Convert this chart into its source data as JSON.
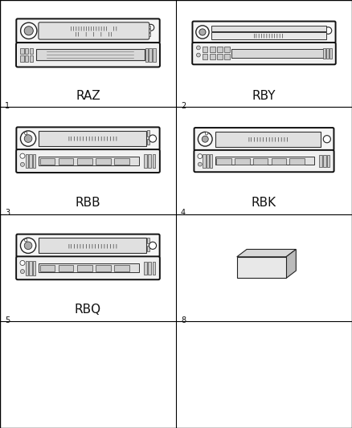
{
  "background_color": "#ffffff",
  "cells": [
    {
      "row": 0,
      "col": 0,
      "number": "1",
      "label": "RAZ",
      "type": "radio_RAZ"
    },
    {
      "row": 0,
      "col": 1,
      "number": "2",
      "label": "RBY",
      "type": "radio_RBY"
    },
    {
      "row": 1,
      "col": 0,
      "number": "3",
      "label": "RBB",
      "type": "radio_RBB"
    },
    {
      "row": 1,
      "col": 1,
      "number": "4",
      "label": "RBK",
      "type": "radio_RBK"
    },
    {
      "row": 2,
      "col": 0,
      "number": "5",
      "label": "RBQ",
      "type": "radio_RBQ"
    },
    {
      "row": 2,
      "col": 1,
      "number": "8",
      "label": "",
      "type": "box"
    },
    {
      "row": 3,
      "col": 0,
      "number": "",
      "label": "",
      "type": "empty"
    },
    {
      "row": 3,
      "col": 1,
      "number": "",
      "label": "",
      "type": "empty"
    }
  ],
  "num_rows": 4,
  "num_cols": 2,
  "label_fontsize": 11,
  "number_fontsize": 7,
  "line_color": "#000000",
  "line_width": 0.8
}
